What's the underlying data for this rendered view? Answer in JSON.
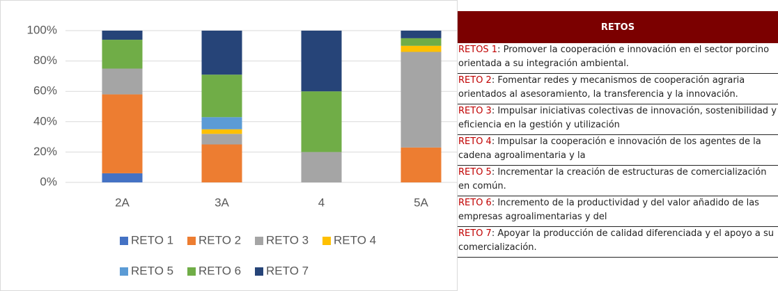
{
  "chart_data": {
    "type": "stacked-bar",
    "categories": [
      "2A",
      "3A",
      "4",
      "5A"
    ],
    "series": [
      {
        "name": "RETO 1",
        "color": "#4472c4",
        "values": [
          6,
          0,
          0,
          0
        ]
      },
      {
        "name": "RETO 2",
        "color": "#ed7d31",
        "values": [
          52,
          25,
          0,
          23
        ]
      },
      {
        "name": "RETO 3",
        "color": "#a5a5a5",
        "values": [
          17,
          7,
          20,
          63
        ]
      },
      {
        "name": "RETO 4",
        "color": "#ffc000",
        "values": [
          0,
          3,
          0,
          4
        ]
      },
      {
        "name": "RETO 5",
        "color": "#5b9bd5",
        "values": [
          0,
          8,
          0,
          0
        ]
      },
      {
        "name": "RETO 6",
        "color": "#70ad47",
        "values": [
          19,
          28,
          40,
          5
        ]
      },
      {
        "name": "RETO 7",
        "color": "#264478",
        "values": [
          6,
          29,
          40,
          5
        ]
      }
    ],
    "ylim": [
      0,
      100
    ],
    "yticks": [
      {
        "value": 0,
        "label": "0%"
      },
      {
        "value": 20,
        "label": "20%"
      },
      {
        "value": 40,
        "label": "40%"
      },
      {
        "value": 60,
        "label": "60%"
      },
      {
        "value": 80,
        "label": "80%"
      },
      {
        "value": 100,
        "label": "100%"
      }
    ],
    "grid": true,
    "legend": "bottom"
  },
  "table": {
    "header": "RETOS",
    "rows": [
      {
        "label": "RETOS 1",
        "text": ": Promover la cooperación e innovación en el sector porcino orientada a su integración ambiental."
      },
      {
        "label": "RETO 2",
        "text": ": Fomentar redes y mecanismos de cooperación agraria orientados al asesoramiento, la transferencia y la innovación."
      },
      {
        "label": "RETO 3",
        "text": ": Impulsar iniciativas colectivas de innovación, sostenibilidad y eficiencia en la gestión y utilización"
      },
      {
        "label": "RETO 4",
        "text": ": Impulsar la cooperación e innovación de los agentes de la cadena agroalimentaria y la"
      },
      {
        "label": "RETO 5",
        "text": ": Incrementar la creación de estructuras de comercialización en común."
      },
      {
        "label": "RETO 6",
        "text": ": Incremento de la productividad y del valor añadido de las empresas agroalimentarias y del"
      },
      {
        "label": "RETO 7",
        "text": ": Apoyar la producción de calidad diferenciada y el apoyo a su comercialización."
      }
    ]
  }
}
